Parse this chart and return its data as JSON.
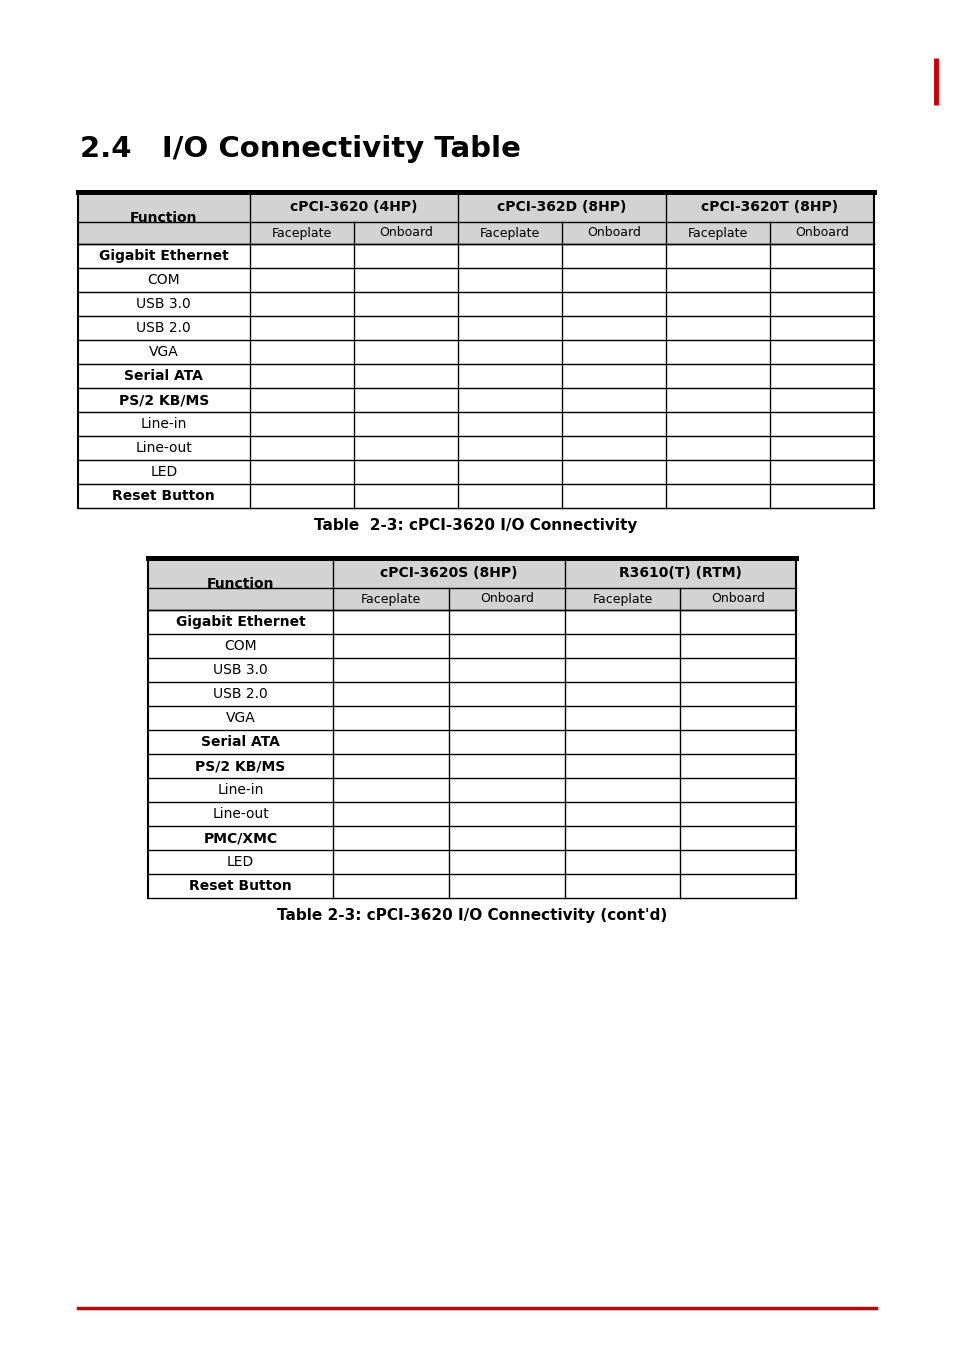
{
  "page_title": "2.4   I/O Connectivity Table",
  "section_marker_color": "#cc0000",
  "table1": {
    "caption": "Table  2-3: cPCI-3620 I/O Connectivity",
    "col_group_headers": [
      "cPCI-3620 (4HP)",
      "cPCI-362D (8HP)",
      "cPCI-3620T (8HP)"
    ],
    "sub_headers": [
      "Faceplate",
      "Onboard",
      "Faceplate",
      "Onboard",
      "Faceplate",
      "Onboard"
    ],
    "data_rows": [
      "Gigabit Ethernet",
      "COM",
      "USB 3.0",
      "USB 2.0",
      "VGA",
      "Serial ATA",
      "PS/2 KB/MS",
      "Line-in",
      "Line-out",
      "LED",
      "Reset Button"
    ],
    "header_bg": "#d3d3d3",
    "border_color": "#000000",
    "bold_rows": [
      "Gigabit Ethernet",
      "Serial ATA",
      "PS/2 KB/MS",
      "Reset Button"
    ],
    "left_bold_rows": [
      "Gigabit Ethernet",
      "Serial ATA",
      "PS/2 KB/MS",
      "Reset Button"
    ]
  },
  "table2": {
    "caption": "Table 2-3: cPCI-3620 I/O Connectivity (cont'd)",
    "col_group_headers": [
      "cPCI-3620S (8HP)",
      "R3610(T) (RTM)"
    ],
    "sub_headers": [
      "Faceplate",
      "Onboard",
      "Faceplate",
      "Onboard"
    ],
    "data_rows": [
      "Gigabit Ethernet",
      "COM",
      "USB 3.0",
      "USB 2.0",
      "VGA",
      "Serial ATA",
      "PS/2 KB/MS",
      "Line-in",
      "Line-out",
      "PMC/XMC",
      "LED",
      "Reset Button"
    ],
    "header_bg": "#d3d3d3",
    "border_color": "#000000",
    "bold_rows": [
      "Gigabit Ethernet",
      "Serial ATA",
      "PS/2 KB/MS",
      "PMC/XMC",
      "Reset Button"
    ],
    "left_bold_rows": [
      "Gigabit Ethernet",
      "Serial ATA",
      "PS/2 KB/MS",
      "PMC/XMC",
      "Reset Button"
    ]
  },
  "footer_line_color": "#cc0000",
  "background_color": "#ffffff",
  "text_color": "#000000"
}
